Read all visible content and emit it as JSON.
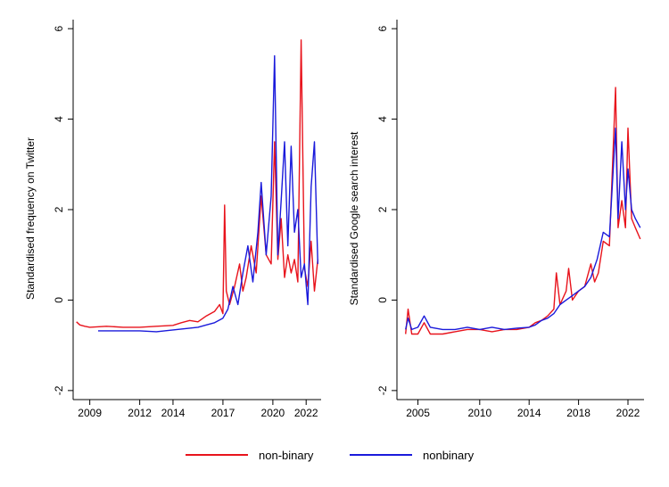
{
  "chart_data": [
    {
      "type": "line",
      "title": "",
      "xlabel": "",
      "ylabel": "Standardised frequency on Twitter",
      "xlim": [
        2008,
        2022.9
      ],
      "ylim": [
        -2.2,
        6.2
      ],
      "xticks": [
        2009,
        2012,
        2014,
        2017,
        2020,
        2022
      ],
      "yticks": [
        -2,
        0,
        2,
        4,
        6
      ],
      "grid": false,
      "series": [
        {
          "name": "non-binary",
          "color": "#e8131c",
          "x": [
            2008.2,
            2008.4,
            2008.7,
            2009,
            2010,
            2011,
            2012,
            2013,
            2014,
            2014.5,
            2015,
            2015.5,
            2016,
            2016.5,
            2016.8,
            2017,
            2017.1,
            2017.2,
            2017.4,
            2017.7,
            2018,
            2018.2,
            2018.4,
            2018.7,
            2019,
            2019.3,
            2019.6,
            2019.9,
            2020.1,
            2020.3,
            2020.5,
            2020.7,
            2020.9,
            2021.1,
            2021.3,
            2021.5,
            2021.7,
            2021.9,
            2022.1,
            2022.3,
            2022.5,
            2022.7
          ],
          "y": [
            -0.48,
            -0.55,
            -0.58,
            -0.6,
            -0.58,
            -0.6,
            -0.6,
            -0.58,
            -0.56,
            -0.5,
            -0.45,
            -0.48,
            -0.35,
            -0.25,
            -0.1,
            -0.3,
            2.1,
            0.2,
            -0.1,
            0.3,
            0.8,
            0.2,
            0.5,
            1.2,
            0.6,
            2.3,
            1.0,
            0.8,
            3.5,
            0.9,
            1.8,
            0.5,
            1.0,
            0.6,
            0.9,
            0.4,
            5.75,
            0.7,
            0.3,
            1.3,
            0.2,
            0.9
          ]
        },
        {
          "name": "nonbinary",
          "color": "#1a1adb",
          "x": [
            2009.5,
            2010,
            2011,
            2012,
            2013,
            2014,
            2014.5,
            2015,
            2015.5,
            2016,
            2016.5,
            2017,
            2017.3,
            2017.6,
            2017.9,
            2018.2,
            2018.5,
            2018.8,
            2019.1,
            2019.3,
            2019.6,
            2019.9,
            2020.1,
            2020.3,
            2020.5,
            2020.7,
            2020.9,
            2021.1,
            2021.3,
            2021.5,
            2021.7,
            2021.9,
            2022.1,
            2022.3,
            2022.5,
            2022.7
          ],
          "y": [
            -0.68,
            -0.68,
            -0.68,
            -0.68,
            -0.7,
            -0.66,
            -0.64,
            -0.62,
            -0.6,
            -0.55,
            -0.5,
            -0.4,
            -0.2,
            0.3,
            -0.1,
            0.6,
            1.2,
            0.4,
            1.5,
            2.6,
            1.0,
            2.3,
            5.4,
            1.0,
            2.2,
            3.5,
            1.2,
            3.4,
            1.5,
            2.0,
            0.5,
            0.8,
            -0.1,
            2.5,
            3.5,
            0.8
          ]
        }
      ]
    },
    {
      "type": "line",
      "title": "",
      "xlabel": "",
      "ylabel": "Standardised Google search interest",
      "xlim": [
        2003.3,
        2023.3
      ],
      "ylim": [
        -2.2,
        6.2
      ],
      "xticks": [
        2005,
        2010,
        2014,
        2018,
        2022
      ],
      "yticks": [
        -2,
        0,
        2,
        4,
        6
      ],
      "grid": false,
      "series": [
        {
          "name": "non-binary",
          "color": "#e8131c",
          "x": [
            2004,
            2004.2,
            2004.5,
            2005,
            2005.5,
            2006,
            2007,
            2008,
            2009,
            2010,
            2011,
            2012,
            2013,
            2014,
            2014.5,
            2015,
            2015.5,
            2016,
            2016.2,
            2016.5,
            2017,
            2017.2,
            2017.5,
            2018,
            2018.5,
            2019,
            2019.3,
            2019.6,
            2020,
            2020.5,
            2021,
            2021.2,
            2021.5,
            2021.8,
            2022,
            2022.3,
            2022.6,
            2023
          ],
          "y": [
            -0.75,
            -0.2,
            -0.75,
            -0.75,
            -0.5,
            -0.75,
            -0.75,
            -0.7,
            -0.65,
            -0.65,
            -0.7,
            -0.65,
            -0.65,
            -0.6,
            -0.5,
            -0.45,
            -0.35,
            -0.2,
            0.6,
            -0.1,
            0.2,
            0.7,
            0.0,
            0.2,
            0.3,
            0.8,
            0.4,
            0.6,
            1.3,
            1.2,
            4.7,
            1.6,
            2.2,
            1.6,
            3.8,
            1.8,
            1.6,
            1.35
          ]
        },
        {
          "name": "nonbinary",
          "color": "#1a1adb",
          "x": [
            2004,
            2004.2,
            2004.5,
            2005,
            2005.5,
            2006,
            2007,
            2008,
            2009,
            2010,
            2011,
            2012,
            2013,
            2014,
            2014.5,
            2015,
            2015.5,
            2016,
            2016.5,
            2017,
            2017.5,
            2018,
            2018.5,
            2019,
            2019.5,
            2020,
            2020.5,
            2021,
            2021.2,
            2021.5,
            2021.8,
            2022,
            2022.3,
            2022.6,
            2023
          ],
          "y": [
            -0.65,
            -0.4,
            -0.65,
            -0.6,
            -0.35,
            -0.6,
            -0.65,
            -0.65,
            -0.6,
            -0.65,
            -0.6,
            -0.65,
            -0.62,
            -0.6,
            -0.55,
            -0.45,
            -0.4,
            -0.3,
            -0.1,
            0.0,
            0.1,
            0.2,
            0.3,
            0.5,
            0.9,
            1.5,
            1.4,
            3.8,
            1.8,
            3.5,
            2.0,
            2.9,
            2.0,
            1.8,
            1.6
          ]
        }
      ]
    }
  ],
  "legend": {
    "items": [
      {
        "label": "non-binary",
        "color": "#e8131c"
      },
      {
        "label": "nonbinary",
        "color": "#1a1adb"
      }
    ]
  }
}
